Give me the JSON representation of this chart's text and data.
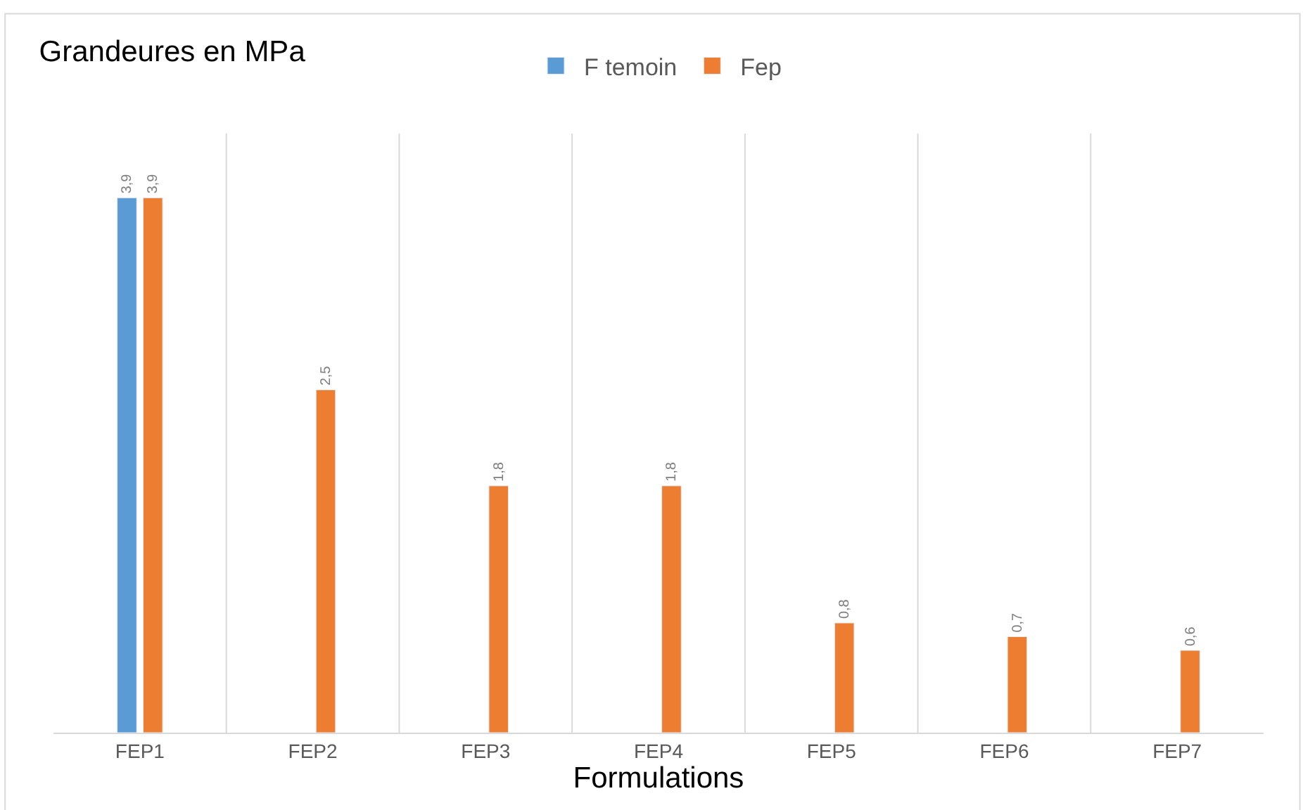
{
  "chart_data": {
    "type": "bar",
    "title": "Grandeures en MPa",
    "xlabel": "Formulations",
    "categories": [
      "FEP1",
      "FEP2",
      "FEP3",
      "FEP4",
      "FEP5",
      "FEP6",
      "FEP7"
    ],
    "series": [
      {
        "name": "F temoin",
        "color": "#5b9bd5",
        "values": [
          3.9,
          null,
          null,
          null,
          null,
          null,
          null
        ],
        "value_labels": [
          "3,9",
          null,
          null,
          null,
          null,
          null,
          null
        ]
      },
      {
        "name": "Fep",
        "color": "#ed7d31",
        "values": [
          3.9,
          2.5,
          1.8,
          1.8,
          0.8,
          0.7,
          0.6
        ],
        "value_labels": [
          "3,9",
          "2,5",
          "1,8",
          "1,8",
          "0,8",
          "0,7",
          "0,6"
        ]
      }
    ],
    "grid": "x",
    "legend": "top"
  }
}
